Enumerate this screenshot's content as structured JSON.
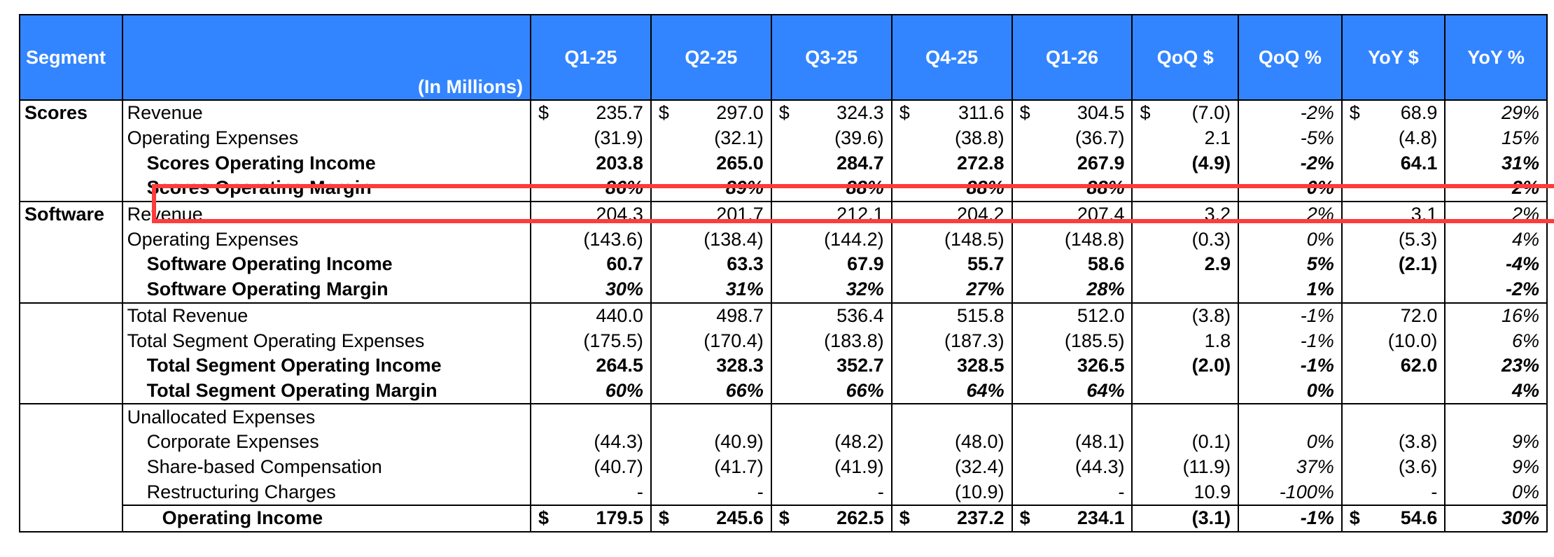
{
  "header": {
    "segment": "Segment",
    "in_millions": "(In Millions)",
    "columns": [
      "Q1-25",
      "Q2-25",
      "Q3-25",
      "Q4-25",
      "Q1-26",
      "QoQ $",
      "QoQ %",
      "YoY $",
      "YoY %"
    ]
  },
  "groups": [
    {
      "segment": "Scores",
      "rows": [
        {
          "label": "Revenue",
          "values": [
            "235.7",
            "297.0",
            "324.3",
            "311.6",
            "304.5",
            "(7.0)",
            "-2%",
            "68.9",
            "29%"
          ],
          "dollar": [
            true,
            true,
            true,
            true,
            true,
            true,
            false,
            true,
            false
          ]
        },
        {
          "label": "Operating Expenses",
          "values": [
            "(31.9)",
            "(32.1)",
            "(39.6)",
            "(38.8)",
            "(36.7)",
            "2.1",
            "-5%",
            "(4.8)",
            "15%"
          ]
        },
        {
          "label": "Scores Operating Income",
          "values": [
            "203.8",
            "265.0",
            "284.7",
            "272.8",
            "267.9",
            "(4.9)",
            "-2%",
            "64.1",
            "31%"
          ]
        },
        {
          "label": "Scores Operating Margin",
          "values": [
            "86%",
            "89%",
            "88%",
            "88%",
            "88%",
            "",
            "0%",
            "",
            "2%"
          ]
        }
      ]
    },
    {
      "segment": "Software",
      "rows": [
        {
          "label": "Revenue",
          "values": [
            "204.3",
            "201.7",
            "212.1",
            "204.2",
            "207.4",
            "3.2",
            "2%",
            "3.1",
            "2%"
          ]
        },
        {
          "label": "Operating Expenses",
          "values": [
            "(143.6)",
            "(138.4)",
            "(144.2)",
            "(148.5)",
            "(148.8)",
            "(0.3)",
            "0%",
            "(5.3)",
            "4%"
          ]
        },
        {
          "label": "Software Operating Income",
          "values": [
            "60.7",
            "63.3",
            "67.9",
            "55.7",
            "58.6",
            "2.9",
            "5%",
            "(2.1)",
            "-4%"
          ]
        },
        {
          "label": "Software Operating Margin",
          "values": [
            "30%",
            "31%",
            "32%",
            "27%",
            "28%",
            "",
            "1%",
            "",
            "-2%"
          ]
        }
      ]
    },
    {
      "segment": "",
      "rows": [
        {
          "label": "Total Revenue",
          "values": [
            "440.0",
            "498.7",
            "536.4",
            "515.8",
            "512.0",
            "(3.8)",
            "-1%",
            "72.0",
            "16%"
          ]
        },
        {
          "label": "Total Segment Operating Expenses",
          "values": [
            "(175.5)",
            "(170.4)",
            "(183.8)",
            "(187.3)",
            "(185.5)",
            "1.8",
            "-1%",
            "(10.0)",
            "6%"
          ]
        },
        {
          "label": "Total Segment Operating Income",
          "values": [
            "264.5",
            "328.3",
            "352.7",
            "328.5",
            "326.5",
            "(2.0)",
            "-1%",
            "62.0",
            "23%"
          ]
        },
        {
          "label": "Total Segment Operating Margin",
          "values": [
            "60%",
            "66%",
            "66%",
            "64%",
            "64%",
            "",
            "0%",
            "",
            "4%"
          ]
        }
      ]
    },
    {
      "segment": "",
      "rows": [
        {
          "label": "Unallocated Expenses",
          "values": [
            "",
            "",
            "",
            "",
            "",
            "",
            "",
            "",
            ""
          ]
        },
        {
          "label": "Corporate Expenses",
          "values": [
            "(44.3)",
            "(40.9)",
            "(48.2)",
            "(48.0)",
            "(48.1)",
            "(0.1)",
            "0%",
            "(3.8)",
            "9%"
          ]
        },
        {
          "label": "Share-based Compensation",
          "values": [
            "(40.7)",
            "(41.7)",
            "(41.9)",
            "(32.4)",
            "(44.3)",
            "(11.9)",
            "37%",
            "(3.6)",
            "9%"
          ]
        },
        {
          "label": "Restructuring Charges",
          "values": [
            "-",
            "-",
            "-",
            "(10.9)",
            "-",
            "10.9",
            "-100%",
            "-",
            "0%"
          ]
        },
        {
          "label": "Operating Income",
          "values": [
            "179.5",
            "245.6",
            "262.5",
            "237.2",
            "234.1",
            "(3.1)",
            "-1%",
            "54.6",
            "30%"
          ],
          "dollar": [
            true,
            true,
            true,
            true,
            true,
            false,
            false,
            true,
            false
          ]
        }
      ]
    }
  ],
  "currency_symbol": "$",
  "highlight": {
    "target_row": "Scores Operating Margin",
    "color": "#ff3b3b"
  },
  "colors": {
    "header_bg": "#3385ff",
    "header_text": "#ffffff"
  }
}
